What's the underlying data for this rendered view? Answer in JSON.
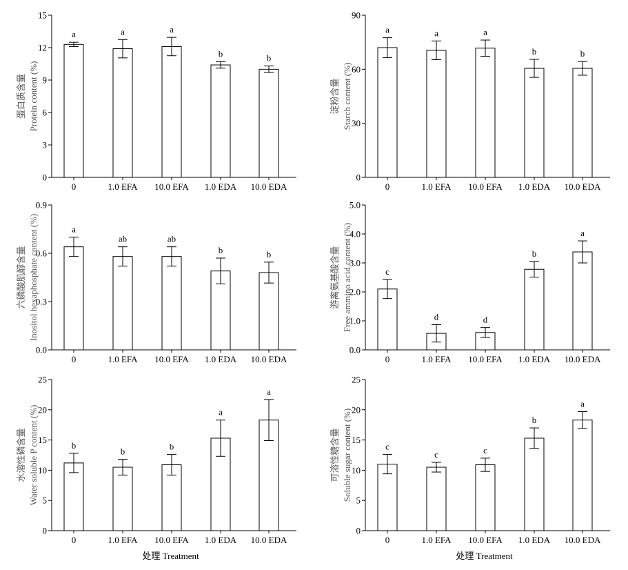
{
  "figure": {
    "xlabel": "处理 Treatment"
  },
  "chart_data": [
    {
      "type": "bar",
      "ylabel_cn": "蛋白质含量",
      "ylabel_en": "Protein content (%)",
      "categories": [
        "0",
        "1.0 EFA",
        "10.0 EFA",
        "1.0 EDA",
        "10.0 EDA"
      ],
      "values": [
        12.3,
        11.9,
        12.1,
        10.4,
        10.0
      ],
      "errors": [
        0.2,
        0.85,
        0.85,
        0.3,
        0.3
      ],
      "significance": [
        "a",
        "a",
        "a",
        "b",
        "b"
      ],
      "ylim": [
        0,
        15
      ],
      "yticks": [
        "0",
        "3",
        "6",
        "9",
        "12",
        "15"
      ],
      "xlabel": ""
    },
    {
      "type": "bar",
      "ylabel_cn": "淀粉含量",
      "ylabel_en": "Starch content (%)",
      "categories": [
        "0",
        "1.0 EFA",
        "10.0 EFA",
        "1.0 EDA",
        "10.0 EDA"
      ],
      "values": [
        72.0,
        70.5,
        71.7,
        60.5,
        60.5
      ],
      "errors": [
        5.5,
        5.2,
        4.5,
        5.0,
        3.8
      ],
      "significance": [
        "a",
        "a",
        "a",
        "b",
        "b"
      ],
      "ylim": [
        0,
        90
      ],
      "yticks": [
        "0",
        "30",
        "60",
        "90"
      ],
      "xlabel": ""
    },
    {
      "type": "bar",
      "ylabel_cn": "六磷酸肌醇含量",
      "ylabel_en": "Inositol hexaphosphate content (%)",
      "categories": [
        "0",
        "1.0 EFA",
        "10.0 EFA",
        "1.0 EDA",
        "10.0 EDA"
      ],
      "values": [
        0.64,
        0.58,
        0.58,
        0.49,
        0.48
      ],
      "errors": [
        0.06,
        0.06,
        0.06,
        0.08,
        0.065
      ],
      "significance": [
        "a",
        "ab",
        "ab",
        "b",
        "b"
      ],
      "ylim": [
        0,
        0.9
      ],
      "yticks": [
        "0.0",
        "0.3",
        "0.6",
        "0.9"
      ],
      "xlabel": ""
    },
    {
      "type": "bar",
      "ylabel_cn": "游离氨基酸含量",
      "ylabel_en": "Free ammino acid content (%)",
      "categories": [
        "0",
        "1.0 EFA",
        "10.0 EFA",
        "1.0 EDA",
        "10.0 EDA"
      ],
      "values": [
        2.1,
        0.57,
        0.6,
        2.78,
        3.38
      ],
      "errors": [
        0.33,
        0.3,
        0.17,
        0.27,
        0.38
      ],
      "significance": [
        "c",
        "d",
        "d",
        "b",
        "a"
      ],
      "ylim": [
        0,
        5
      ],
      "yticks": [
        "0.0",
        "1.0",
        "2.0",
        "3.0",
        "4.0",
        "5.0"
      ],
      "xlabel": ""
    },
    {
      "type": "bar",
      "ylabel_cn": "水溶性磷含量",
      "ylabel_en": "Water soluble P content (%)",
      "categories": [
        "0",
        "1.0 EFA",
        "10.0 EFA",
        "1.0 EDA",
        "10.0 EDA"
      ],
      "values": [
        11.2,
        10.5,
        10.9,
        15.3,
        18.3
      ],
      "errors": [
        1.6,
        1.3,
        1.7,
        3.0,
        3.4
      ],
      "significance": [
        "b",
        "b",
        "b",
        "a",
        "a"
      ],
      "ylim": [
        0,
        25
      ],
      "yticks": [
        "0",
        "5",
        "10",
        "15",
        "20",
        "25"
      ],
      "xlabel": "处理 Treatment"
    },
    {
      "type": "bar",
      "ylabel_cn": "可溶性糖含量",
      "ylabel_en": "Soluble sugar content (%)",
      "categories": [
        "0",
        "1.0 EFA",
        "10.0 EFA",
        "1.0 EDA",
        "10.0 EDA"
      ],
      "values": [
        11.0,
        10.5,
        10.9,
        15.3,
        18.3
      ],
      "errors": [
        1.6,
        0.8,
        1.1,
        1.7,
        1.4
      ],
      "significance": [
        "c",
        "c",
        "c",
        "b",
        "a"
      ],
      "ylim": [
        0,
        25
      ],
      "yticks": [
        "0",
        "5",
        "10",
        "15",
        "20",
        "25"
      ],
      "xlabel": "处理 Treatment"
    }
  ]
}
